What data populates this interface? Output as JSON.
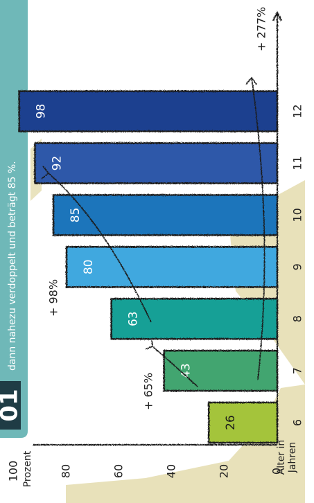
{
  "header": {
    "caption": "dann nahezu verdoppelt und beträgt 85 %.",
    "badge": "01",
    "colors": {
      "teal": "#6fb8b8",
      "dark": "#1f3c45",
      "sand": "#e4dcae"
    }
  },
  "chart_data": {
    "type": "bar",
    "orientation": "rotated-90-ccw",
    "categories": [
      "6",
      "7",
      "8",
      "9",
      "10",
      "11",
      "12"
    ],
    "values": [
      26,
      43,
      63,
      80,
      85,
      92,
      98
    ],
    "value_labels": [
      "26",
      "43",
      "63",
      "80",
      "85",
      "92",
      "98"
    ],
    "bar_colors": [
      "#a4c43a",
      "#43a56f",
      "#14a096",
      "#3fa8df",
      "#1e74bb",
      "#2e59a9",
      "#1e418f"
    ],
    "ylim": [
      0,
      100
    ],
    "yticks": [
      "0",
      "20",
      "40",
      "60",
      "80",
      "100"
    ],
    "ylabel": "Prozent",
    "xlabel": "Alter in Jahren",
    "annotations": [
      "+ 65%",
      "+ 98%",
      "+ 277%"
    ],
    "grid": false,
    "legend": "none"
  }
}
